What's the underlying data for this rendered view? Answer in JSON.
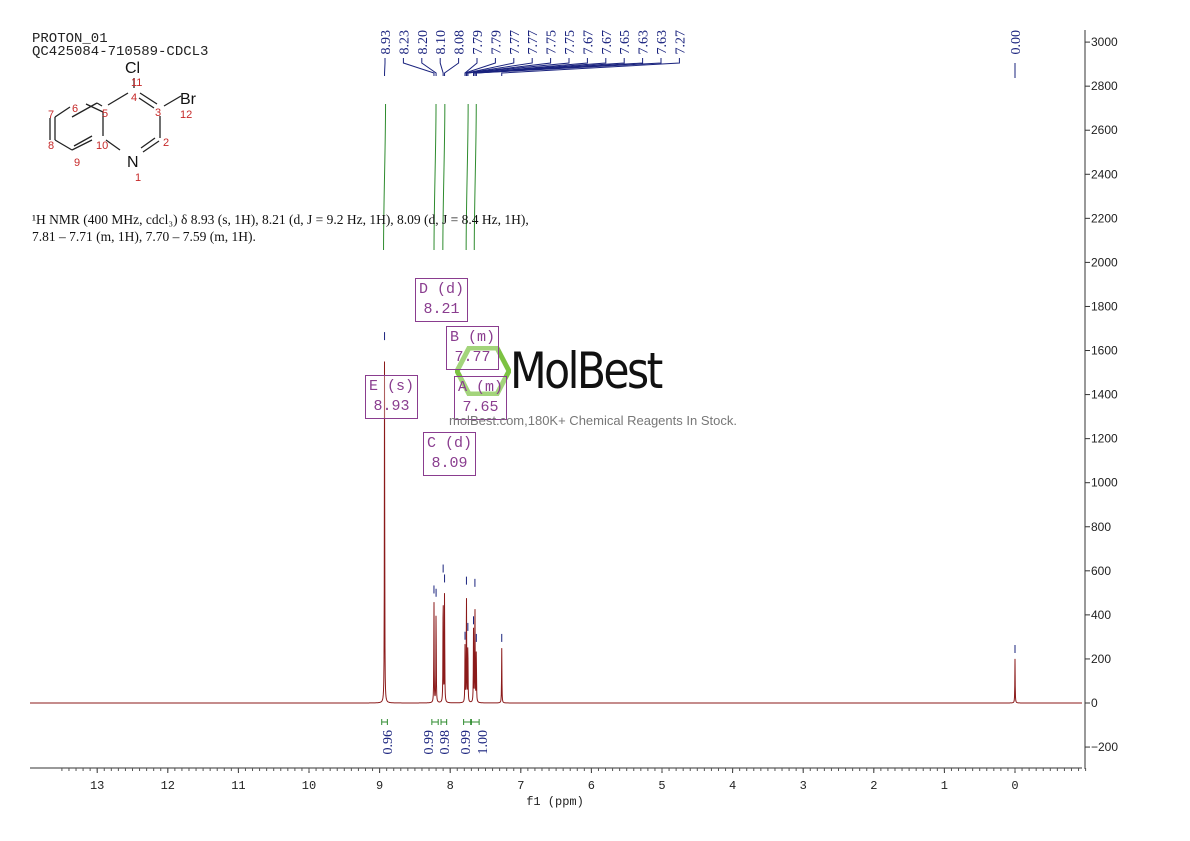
{
  "header": {
    "line1": "PROTON_01",
    "line2": "QC425084-710589-CDCL3"
  },
  "structure": {
    "atoms": {
      "Cl": "Cl",
      "Br": "Br",
      "N": "N"
    },
    "numbers": [
      "1",
      "2",
      "3",
      "4",
      "5",
      "6",
      "7",
      "8",
      "9",
      "10",
      "11",
      "12"
    ]
  },
  "description": {
    "line1": "¹H NMR (400 MHz, cdcl₃) δ 8.93 (s, 1H), 8.21 (d, J = 9.2 Hz, 1H), 8.09 (d, J = 8.4 Hz, 1H),",
    "line2": "7.81 – 7.71 (m, 1H), 7.70 – 7.59 (m, 1H)."
  },
  "multiplets": [
    {
      "label": "D (d)",
      "shift": "8.21"
    },
    {
      "label": "B (m)",
      "shift": "7.77"
    },
    {
      "label": "E (s)",
      "shift": "8.93"
    },
    {
      "label": "A (m)",
      "shift": "7.65"
    },
    {
      "label": "C (d)",
      "shift": "8.09"
    }
  ],
  "watermark": {
    "brand": "MolBest",
    "tagline": "molBest.com,180K+ Chemical Reagents In Stock."
  },
  "colors": {
    "spectrum": "#8b1a1a",
    "peak_labels": "#1a237e",
    "integrals": "#2e8b2e",
    "multiplet_boxes": "#8a3d8f"
  },
  "chart_data": {
    "type": "line",
    "xlabel": "f1 (ppm)",
    "xlim": [
      13.9,
      -0.95
    ],
    "ylim": [
      -300,
      3050
    ],
    "xticks": [
      "13",
      "12",
      "11",
      "10",
      "9",
      "8",
      "7",
      "6",
      "5",
      "4",
      "3",
      "2",
      "1",
      "0"
    ],
    "yticks": [
      "3000",
      "2800",
      "2600",
      "2400",
      "2200",
      "2000",
      "1800",
      "1600",
      "1400",
      "1200",
      "1000",
      "800",
      "600",
      "400",
      "200",
      "0",
      "-200"
    ],
    "peak_labels": [
      "8.93",
      "8.23",
      "8.20",
      "8.10",
      "8.08",
      "7.79",
      "7.79",
      "7.77",
      "7.77",
      "7.75",
      "7.75",
      "7.67",
      "7.67",
      "7.65",
      "7.63",
      "7.63",
      "7.27",
      "0.00"
    ],
    "peaks": [
      {
        "ppm": 8.93,
        "intensity": 1620
      },
      {
        "ppm": 8.23,
        "intensity": 470
      },
      {
        "ppm": 8.2,
        "intensity": 455
      },
      {
        "ppm": 8.1,
        "intensity": 565
      },
      {
        "ppm": 8.08,
        "intensity": 520
      },
      {
        "ppm": 7.79,
        "intensity": 260
      },
      {
        "ppm": 7.77,
        "intensity": 510
      },
      {
        "ppm": 7.75,
        "intensity": 300
      },
      {
        "ppm": 7.67,
        "intensity": 330
      },
      {
        "ppm": 7.65,
        "intensity": 500
      },
      {
        "ppm": 7.63,
        "intensity": 250
      },
      {
        "ppm": 7.27,
        "intensity": 250
      },
      {
        "ppm": 0.0,
        "intensity": 200
      }
    ],
    "integrals": [
      {
        "from": 8.97,
        "to": 8.89,
        "value": "0.96"
      },
      {
        "from": 8.26,
        "to": 8.17,
        "value": "0.99"
      },
      {
        "from": 8.13,
        "to": 8.05,
        "value": "0.98"
      },
      {
        "from": 7.81,
        "to": 7.71,
        "value": "0.99"
      },
      {
        "from": 7.7,
        "to": 7.59,
        "value": "1.00"
      }
    ]
  }
}
